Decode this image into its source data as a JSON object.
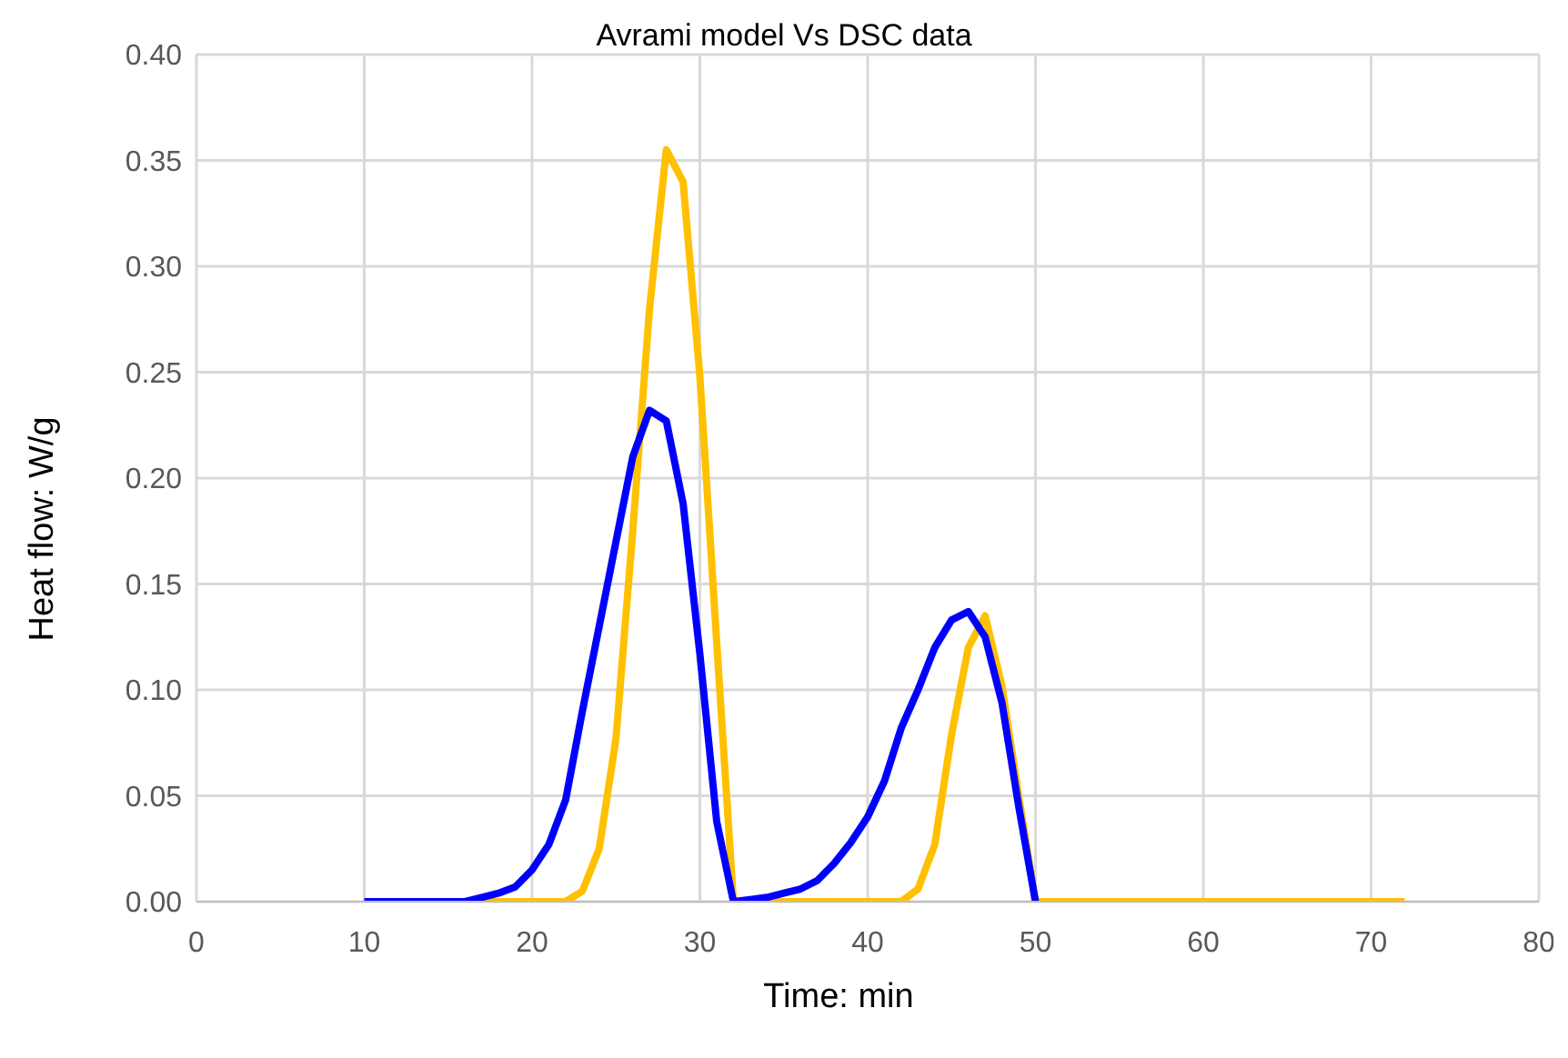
{
  "chart_data": {
    "type": "line",
    "title": "Avrami model Vs DSC data",
    "xlabel": "Time: min",
    "ylabel": "Heat flow: W/g",
    "x": [
      10,
      11,
      12,
      13,
      14,
      15,
      16,
      17,
      18,
      19,
      20,
      21,
      22,
      23,
      24,
      25,
      26,
      27,
      28,
      29,
      30,
      31,
      32,
      33,
      34,
      35,
      36,
      37,
      38,
      39,
      40,
      41,
      42,
      43,
      44,
      45,
      46,
      47,
      48,
      49,
      50,
      51,
      52,
      53,
      54,
      55,
      56,
      57,
      58,
      59,
      60,
      61,
      62,
      63,
      64,
      65,
      66,
      67,
      68,
      69,
      70,
      71,
      72
    ],
    "series": [
      {
        "color": "#ffc000",
        "values": [
          null,
          null,
          null,
          null,
          null,
          null,
          0,
          0,
          0,
          0,
          0,
          0,
          0,
          0.005,
          0.025,
          0.077,
          0.175,
          0.28,
          0.355,
          0.34,
          0.248,
          0.123,
          0,
          0,
          0,
          0,
          0,
          0,
          0,
          0,
          0,
          0,
          0,
          0.006,
          0.027,
          0.079,
          0.12,
          0.135,
          0.102,
          0.05,
          0,
          0,
          0,
          0,
          0,
          0,
          0,
          0,
          0,
          0,
          0,
          0,
          0,
          0,
          0,
          0,
          0,
          0,
          0,
          0,
          0,
          0,
          0
        ]
      },
      {
        "color": "#0000ff",
        "values": [
          0,
          0,
          0,
          0,
          0,
          0,
          0,
          0.002,
          0.004,
          0.007,
          0.015,
          0.027,
          0.048,
          0.09,
          0.13,
          0.17,
          0.21,
          0.232,
          0.227,
          0.188,
          0.117,
          0.038,
          0,
          0.001,
          0.002,
          0.004,
          0.006,
          0.01,
          0.018,
          0.028,
          0.04,
          0.057,
          0.082,
          0.1,
          0.12,
          0.133,
          0.137,
          0.125,
          0.094,
          0.045,
          0,
          null,
          null,
          null,
          null,
          null,
          null,
          null,
          null,
          null,
          null,
          null,
          null,
          null,
          null,
          null,
          null,
          null,
          null,
          null,
          null,
          null,
          null
        ]
      }
    ],
    "xlim": [
      0,
      80
    ],
    "xticks": [
      0,
      10,
      20,
      30,
      40,
      50,
      60,
      70,
      80
    ],
    "ylim": [
      0,
      0.4
    ],
    "yticks": [
      {
        "value": 0,
        "label": "0.00"
      },
      {
        "value": 0.05,
        "label": "0.05"
      },
      {
        "value": 0.1,
        "label": "0.10"
      },
      {
        "value": 0.15,
        "label": "0.15"
      },
      {
        "value": 0.2,
        "label": "0.20"
      },
      {
        "value": 0.25,
        "label": "0.25"
      },
      {
        "value": 0.3,
        "label": "0.30"
      },
      {
        "value": 0.35,
        "label": "0.35"
      },
      {
        "value": 0.4,
        "label": "0.40"
      }
    ],
    "grid": true,
    "marker": "none",
    "line_style": "solid",
    "legend": false
  }
}
